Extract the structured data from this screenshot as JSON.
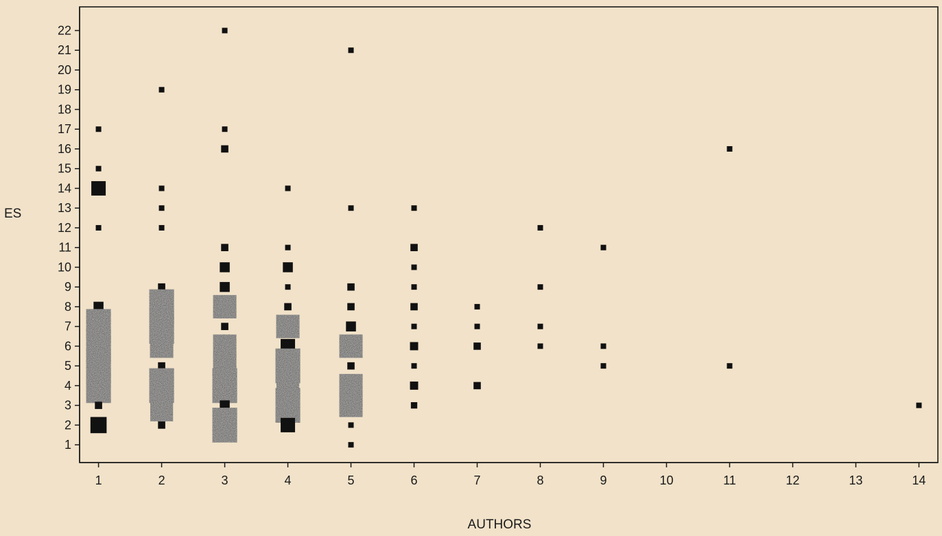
{
  "chart_data": {
    "type": "scatter",
    "title": "",
    "xlabel": "AUTHORS",
    "ylabel": "ES",
    "x_ticks": [
      1,
      2,
      3,
      4,
      5,
      6,
      7,
      8,
      9,
      10,
      11,
      12,
      13,
      14
    ],
    "y_ticks": [
      1,
      2,
      3,
      4,
      5,
      6,
      7,
      8,
      9,
      10,
      11,
      12,
      13,
      14,
      15,
      16,
      17,
      18,
      19,
      20,
      21,
      22
    ],
    "xlim": [
      0.7,
      14.3
    ],
    "ylim": [
      0.1,
      23.2
    ],
    "grid": false,
    "point_size_encodes": "frequency",
    "points": [
      {
        "x": 1,
        "y": 17,
        "size": 1
      },
      {
        "x": 1,
        "y": 15,
        "size": 1
      },
      {
        "x": 1,
        "y": 14,
        "size": 2
      },
      {
        "x": 1,
        "y": 12,
        "size": 1
      },
      {
        "x": 1,
        "y": 8,
        "size": 1.5
      },
      {
        "x": 1,
        "y": 7,
        "size": 4
      },
      {
        "x": 1,
        "y": 6,
        "size": 4
      },
      {
        "x": 1,
        "y": 5,
        "size": 4
      },
      {
        "x": 1,
        "y": 4,
        "size": 4
      },
      {
        "x": 1,
        "y": 3,
        "size": 1.2
      },
      {
        "x": 1,
        "y": 2,
        "size": 2.2
      },
      {
        "x": 2,
        "y": 19,
        "size": 1
      },
      {
        "x": 2,
        "y": 14,
        "size": 1
      },
      {
        "x": 2,
        "y": 13,
        "size": 1
      },
      {
        "x": 2,
        "y": 12,
        "size": 1
      },
      {
        "x": 2,
        "y": 9,
        "size": 1.2
      },
      {
        "x": 2,
        "y": 8,
        "size": 4
      },
      {
        "x": 2,
        "y": 7,
        "size": 4
      },
      {
        "x": 2,
        "y": 6,
        "size": 3
      },
      {
        "x": 2,
        "y": 5,
        "size": 1.2
      },
      {
        "x": 2,
        "y": 4,
        "size": 4.5
      },
      {
        "x": 2,
        "y": 3,
        "size": 3.5
      },
      {
        "x": 2,
        "y": 2,
        "size": 1.2
      },
      {
        "x": 3,
        "y": 22,
        "size": 1
      },
      {
        "x": 3,
        "y": 17,
        "size": 1
      },
      {
        "x": 3,
        "y": 16,
        "size": 1.2
      },
      {
        "x": 3,
        "y": 11,
        "size": 1.2
      },
      {
        "x": 3,
        "y": 10,
        "size": 1.5
      },
      {
        "x": 3,
        "y": 9,
        "size": 1.5
      },
      {
        "x": 3,
        "y": 8,
        "size": 3
      },
      {
        "x": 3,
        "y": 7,
        "size": 1.2
      },
      {
        "x": 3,
        "y": 6,
        "size": 3
      },
      {
        "x": 3,
        "y": 5,
        "size": 3
      },
      {
        "x": 3,
        "y": 4,
        "size": 4
      },
      {
        "x": 3,
        "y": 3,
        "size": 1.5
      },
      {
        "x": 3,
        "y": 2,
        "size": 4
      },
      {
        "x": 4,
        "y": 14,
        "size": 1
      },
      {
        "x": 4,
        "y": 11,
        "size": 1
      },
      {
        "x": 4,
        "y": 10,
        "size": 1.5
      },
      {
        "x": 4,
        "y": 9,
        "size": 1
      },
      {
        "x": 4,
        "y": 8,
        "size": 1.2
      },
      {
        "x": 4,
        "y": 7,
        "size": 3
      },
      {
        "x": 4,
        "y": 6,
        "size": 2
      },
      {
        "x": 4,
        "y": 5,
        "size": 4
      },
      {
        "x": 4,
        "y": 4,
        "size": 3.5
      },
      {
        "x": 4,
        "y": 3,
        "size": 4
      },
      {
        "x": 4,
        "y": 2,
        "size": 2
      },
      {
        "x": 5,
        "y": 21,
        "size": 1
      },
      {
        "x": 5,
        "y": 13,
        "size": 1
      },
      {
        "x": 5,
        "y": 9,
        "size": 1.2
      },
      {
        "x": 5,
        "y": 8,
        "size": 1.2
      },
      {
        "x": 5,
        "y": 7,
        "size": 1.5
      },
      {
        "x": 5,
        "y": 6,
        "size": 3
      },
      {
        "x": 5,
        "y": 5,
        "size": 1.2
      },
      {
        "x": 5,
        "y": 4,
        "size": 3
      },
      {
        "x": 5,
        "y": 3,
        "size": 3
      },
      {
        "x": 5,
        "y": 2,
        "size": 1
      },
      {
        "x": 5,
        "y": 1,
        "size": 1
      },
      {
        "x": 6,
        "y": 13,
        "size": 1
      },
      {
        "x": 6,
        "y": 11,
        "size": 1.2
      },
      {
        "x": 6,
        "y": 10,
        "size": 1
      },
      {
        "x": 6,
        "y": 9,
        "size": 1
      },
      {
        "x": 6,
        "y": 8,
        "size": 1.2
      },
      {
        "x": 6,
        "y": 7,
        "size": 1
      },
      {
        "x": 6,
        "y": 6,
        "size": 1.3
      },
      {
        "x": 6,
        "y": 5,
        "size": 1
      },
      {
        "x": 6,
        "y": 4,
        "size": 1.3
      },
      {
        "x": 6,
        "y": 3,
        "size": 1.1
      },
      {
        "x": 7,
        "y": 8,
        "size": 1
      },
      {
        "x": 7,
        "y": 7,
        "size": 1
      },
      {
        "x": 7,
        "y": 6,
        "size": 1.2
      },
      {
        "x": 7,
        "y": 4,
        "size": 1.2
      },
      {
        "x": 8,
        "y": 12,
        "size": 1
      },
      {
        "x": 8,
        "y": 9,
        "size": 1
      },
      {
        "x": 8,
        "y": 7,
        "size": 1
      },
      {
        "x": 8,
        "y": 6,
        "size": 1
      },
      {
        "x": 9,
        "y": 11,
        "size": 1
      },
      {
        "x": 9,
        "y": 6,
        "size": 1
      },
      {
        "x": 9,
        "y": 5,
        "size": 1
      },
      {
        "x": 11,
        "y": 16,
        "size": 1
      },
      {
        "x": 11,
        "y": 5,
        "size": 1
      },
      {
        "x": 14,
        "y": 3,
        "size": 1
      }
    ]
  }
}
